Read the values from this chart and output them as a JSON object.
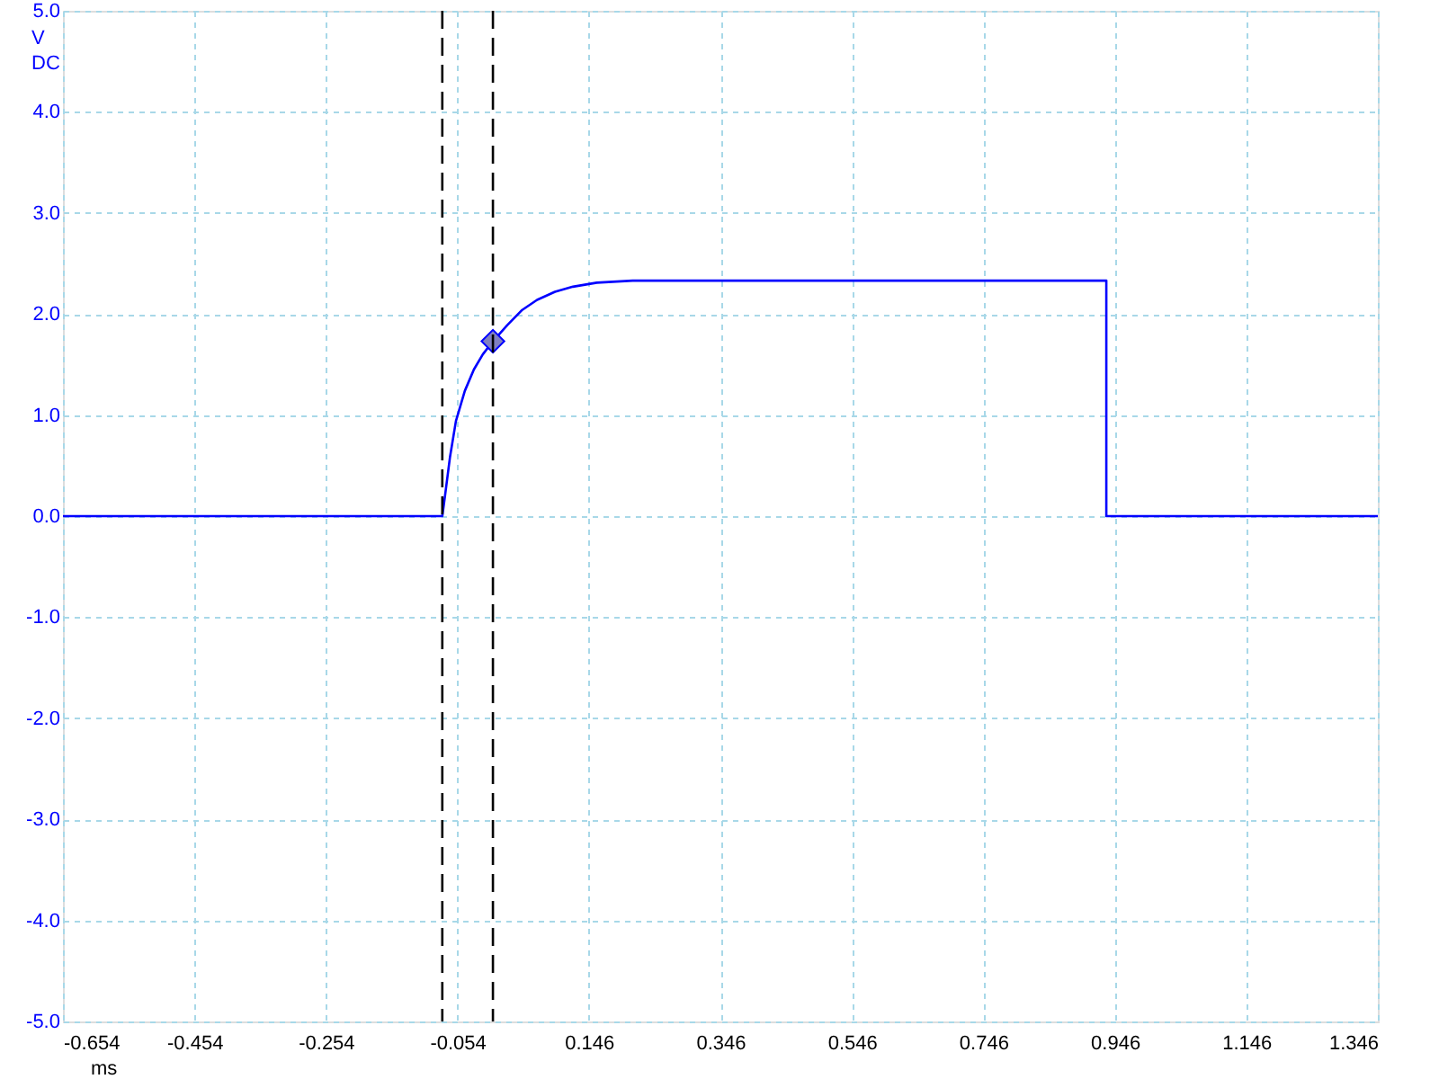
{
  "chart_data": {
    "type": "line",
    "xlabel": "ms",
    "ylabel": "V\nDC",
    "xlim": [
      -0.654,
      1.346
    ],
    "ylim": [
      -5,
      5
    ],
    "xticks": [
      -0.654,
      -0.454,
      -0.254,
      -0.054,
      0.146,
      0.346,
      0.546,
      0.746,
      0.946,
      1.146,
      1.346
    ],
    "yticks": [
      {
        "value": -5,
        "label": "-5.0"
      },
      {
        "value": -4,
        "label": "-4.0"
      },
      {
        "value": -3,
        "label": "-3.0"
      },
      {
        "value": -2,
        "label": "-2.0"
      },
      {
        "value": -1,
        "label": "-1.0"
      },
      {
        "value": 0,
        "label": "0.0"
      },
      {
        "value": 1,
        "label": "1.0"
      },
      {
        "value": 2,
        "label": "2.0"
      },
      {
        "value": 3,
        "label": "3.0"
      },
      {
        "value": 4,
        "label": "4.0"
      },
      {
        "value": 5,
        "label": "5.0"
      }
    ],
    "grid": true,
    "series": [
      {
        "color": "#0000ff",
        "marker": "none",
        "line_style": "solid",
        "x": [
          -0.654,
          -0.077,
          -0.0735,
          -0.0654,
          -0.0563,
          -0.0427,
          -0.029,
          -0.0154,
          0.0,
          0.0218,
          0.0445,
          0.0672,
          0.0944,
          0.1217,
          0.158,
          0.2125,
          0.933,
          0.933,
          1.346
        ],
        "values": [
          0,
          0,
          0.17,
          0.58,
          0.94,
          1.24,
          1.45,
          1.6,
          1.73,
          1.89,
          2.04,
          2.14,
          2.22,
          2.27,
          2.31,
          2.33,
          2.33,
          0,
          0
        ]
      },
      {
        "type": "scatter",
        "color": "#8080c0",
        "marker": "diamond",
        "x": [
          0.0
        ],
        "values": [
          1.73
        ]
      }
    ],
    "ref_lines": [
      {
        "axis": "x",
        "value": -0.077,
        "color": "#000000",
        "line_style": "dashed"
      },
      {
        "axis": "x",
        "value": 0.0,
        "color": "#000000",
        "line_style": "dashed"
      }
    ]
  }
}
